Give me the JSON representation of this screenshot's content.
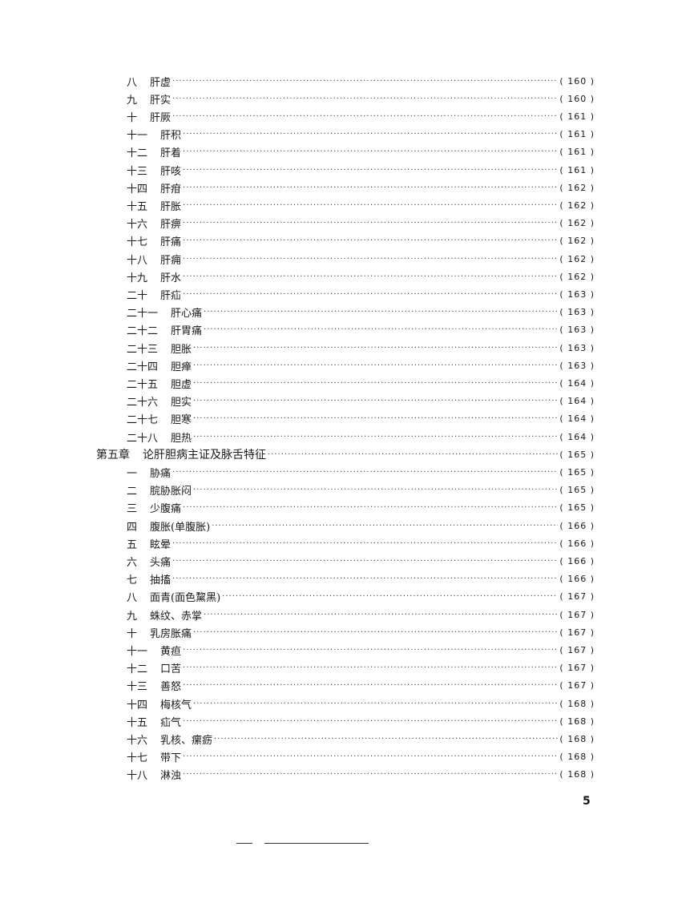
{
  "toc": [
    {
      "num": "八",
      "title": "肝虚",
      "page": "( 160 )"
    },
    {
      "num": "九",
      "title": "肝实",
      "page": "( 160 )"
    },
    {
      "num": "十",
      "title": "肝厥",
      "page": "( 161 )"
    },
    {
      "num": "十一",
      "title": "肝积",
      "page": "( 161 )"
    },
    {
      "num": "十二",
      "title": "肝着",
      "page": "( 161 )"
    },
    {
      "num": "十三",
      "title": "肝咳",
      "page": "( 161 )"
    },
    {
      "num": "十四",
      "title": "肝疳",
      "page": "( 162 )"
    },
    {
      "num": "十五",
      "title": "肝胀",
      "page": "( 162 )"
    },
    {
      "num": "十六",
      "title": "肝痹",
      "page": "( 162 )"
    },
    {
      "num": "十七",
      "title": "肝痛",
      "page": "( 162 )"
    },
    {
      "num": "十八",
      "title": "肝痈",
      "page": "( 162 )"
    },
    {
      "num": "十九",
      "title": "肝水",
      "page": "( 162 )"
    },
    {
      "num": "二十",
      "title": "肝疝",
      "page": "( 163 )"
    },
    {
      "num": "二十一",
      "title": "肝心痛",
      "page": "( 163 )"
    },
    {
      "num": "二十二",
      "title": "肝胃痛",
      "page": "( 163 )"
    },
    {
      "num": "二十三",
      "title": "胆胀",
      "page": "( 163 )"
    },
    {
      "num": "二十四",
      "title": "胆瘅",
      "page": "( 163 )"
    },
    {
      "num": "二十五",
      "title": "胆虚",
      "page": "( 164 )"
    },
    {
      "num": "二十六",
      "title": "胆实",
      "page": "( 164 )"
    },
    {
      "num": "二十七",
      "title": "胆寒",
      "page": "( 164 )"
    },
    {
      "num": "二十八",
      "title": "胆热",
      "page": "( 164 )"
    },
    {
      "num": "第五章",
      "title": "论肝胆病主证及脉舌特征",
      "page": "( 165 )",
      "chapter": true
    },
    {
      "num": "一",
      "title": "胁痛",
      "page": "( 165 )"
    },
    {
      "num": "二",
      "title": "脘胁胀闷",
      "page": "( 165 )"
    },
    {
      "num": "三",
      "title": "少腹痛",
      "page": "( 165 )"
    },
    {
      "num": "四",
      "title": "腹胀(单腹胀)",
      "page": "( 166 )"
    },
    {
      "num": "五",
      "title": "眩晕",
      "page": "( 166 )"
    },
    {
      "num": "六",
      "title": "头痛",
      "page": "( 166 )"
    },
    {
      "num": "七",
      "title": "抽搐",
      "page": "( 166 )"
    },
    {
      "num": "八",
      "title": "面青(面色黧黑)",
      "page": "( 167 )"
    },
    {
      "num": "九",
      "title": "蛛纹、赤掌",
      "page": "( 167 )"
    },
    {
      "num": "十",
      "title": "乳房胀痛",
      "page": "( 167 )"
    },
    {
      "num": "十一",
      "title": "黄疸",
      "page": "( 167 )"
    },
    {
      "num": "十二",
      "title": "口苦",
      "page": "( 167 )"
    },
    {
      "num": "十三",
      "title": "善怒",
      "page": "( 167 )"
    },
    {
      "num": "十四",
      "title": "梅核气",
      "page": "( 168 )"
    },
    {
      "num": "十五",
      "title": "疝气",
      "page": "( 168 )"
    },
    {
      "num": "十六",
      "title": "乳核、瘰疬",
      "page": "( 168 )"
    },
    {
      "num": "十七",
      "title": "带下",
      "page": "( 168 )"
    },
    {
      "num": "十八",
      "title": "淋浊",
      "page": "( 168 )"
    }
  ],
  "page_number": "5"
}
